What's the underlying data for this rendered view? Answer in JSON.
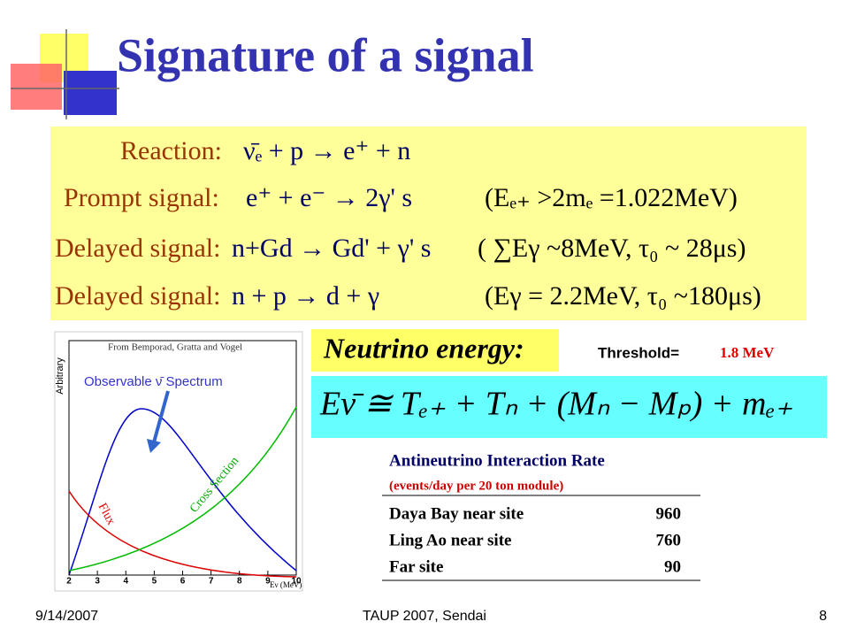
{
  "title": "Signature of a signal",
  "equations": [
    {
      "label": "Reaction:",
      "formula": "ν̄ₑ + p → e⁺ + n"
    },
    {
      "label": "Prompt signal:",
      "formula": "e⁺ + e⁻ → 2γ' s",
      "condition": "(Eₑ₊ >2mₑ =1.022MeV)"
    },
    {
      "label": "Delayed signal:",
      "formula": "n+Gd → Gd' + γ' s",
      "condition": "( ∑Eγ ~8MeV, τ₀ ~ 28μs)"
    },
    {
      "label": "Delayed signal:",
      "formula": "n + p → d + γ",
      "condition": "(Eγ = 2.2MeV, τ₀ ~180μs)"
    }
  ],
  "figure": {
    "source": "From Bemporad, Gratta and Vogel",
    "ylabel": "Arbitrary",
    "spectrum": "Observable ν̄  Spectrum",
    "flux": "Flux",
    "cross_section": "Cross Section",
    "xlabel": "Eν (MeV)",
    "xlim": [
      2,
      10
    ],
    "xticks": [
      2,
      3,
      4,
      5,
      6,
      7,
      8,
      9,
      10
    ]
  },
  "energy": {
    "heading": "Neutrino energy:",
    "threshold_label": "Threshold=",
    "threshold_value": "1.8 MeV",
    "formula": "Eν̄ ≅ Tₑ₊ + Tₙ + (Mₙ − Mₚ) + mₑ₊"
  },
  "table": {
    "title": "Antineutrino Interaction Rate",
    "subtitle": "(events/day per 20 ton module)",
    "rows": [
      [
        "Daya Bay near site",
        960
      ],
      [
        "Ling Ao near site",
        760
      ],
      [
        "Far site",
        90
      ]
    ]
  },
  "footer": {
    "date": "9/14/2007",
    "event": "TAUP 2007, Sendai",
    "page": "8"
  }
}
